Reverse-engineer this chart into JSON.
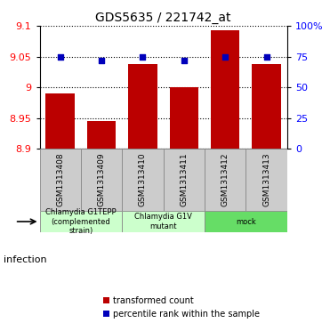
{
  "title": "GDS5635 / 221742_at",
  "samples": [
    "GSM1313408",
    "GSM1313409",
    "GSM1313410",
    "GSM1313411",
    "GSM1313412",
    "GSM1313413"
  ],
  "transformed_counts": [
    8.99,
    8.945,
    9.038,
    9.0,
    9.093,
    9.038
  ],
  "percentile_ranks": [
    75,
    72,
    75,
    72,
    75,
    75
  ],
  "ylim_left": [
    8.9,
    9.1
  ],
  "ylim_right": [
    0,
    100
  ],
  "yticks_left": [
    8.9,
    8.95,
    9.0,
    9.05,
    9.1
  ],
  "yticks_right": [
    0,
    25,
    50,
    75,
    100
  ],
  "ytick_labels_left": [
    "8.9",
    "8.95",
    "9",
    "9.05",
    "9.1"
  ],
  "ytick_labels_right": [
    "0",
    "25",
    "50",
    "75",
    "100%"
  ],
  "bar_color": "#bb0000",
  "dot_color": "#0000bb",
  "groups": [
    {
      "label": "Chlamydia G1TEPP\n(complemented\nstrain)",
      "color": "#ccffcc",
      "cols": [
        0,
        1
      ]
    },
    {
      "label": "Chlamydia G1V\nmutant",
      "color": "#ccffcc",
      "cols": [
        2,
        3
      ]
    },
    {
      "label": "mock",
      "color": "#66dd66",
      "cols": [
        4,
        5
      ]
    }
  ],
  "infection_label": "infection",
  "legend_bar_label": "transformed count",
  "legend_dot_label": "percentile rank within the sample",
  "bar_width": 0.7
}
